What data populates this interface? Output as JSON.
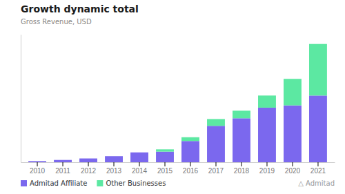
{
  "chart_data": {
    "type": "bar",
    "stacked": true,
    "title": "Growth dynamic total",
    "subtitle": "Gross Revenue, USD",
    "categories": [
      "2010",
      "2011",
      "2012",
      "2013",
      "2014",
      "2015",
      "2016",
      "2017",
      "2018",
      "2019",
      "2020",
      "2021"
    ],
    "series": [
      {
        "name": "Admitad Affiliate",
        "color": "#7B68EE",
        "values": [
          1.5,
          3.0,
          5.0,
          8.0,
          13.0,
          14.0,
          28.0,
          48.0,
          58.0,
          72.0,
          75.0,
          88.0
        ]
      },
      {
        "name": "Other Businesses",
        "color": "#5CE8A2",
        "values": [
          0.0,
          0.0,
          0.0,
          0.0,
          0.0,
          3.0,
          5.0,
          9.0,
          10.0,
          16.0,
          35.0,
          68.0
        ]
      }
    ],
    "ylim": [
      0,
      168.48
    ],
    "tick_labels": "x",
    "grid": false,
    "legend": "bottom-left",
    "annotations": [
      "△ Admitad"
    ]
  }
}
